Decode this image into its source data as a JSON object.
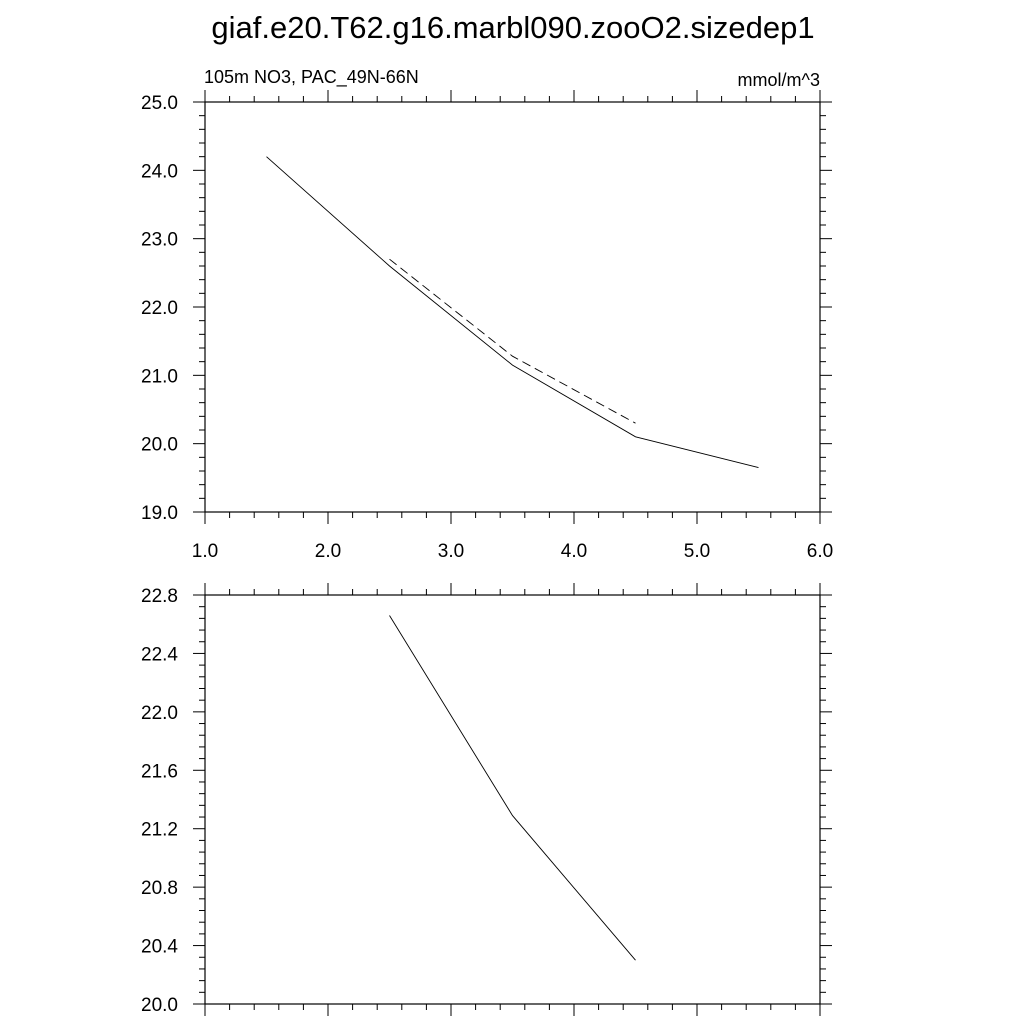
{
  "figure": {
    "title": "giaf.e20.T62.g16.marbl090.zooO2.sizedep1"
  },
  "chart_data": [
    {
      "type": "line",
      "left_label": "105m NO3, PAC_49N-66N",
      "right_label": "mmol/m^3",
      "xlim": [
        1.0,
        6.0
      ],
      "ylim": [
        19.0,
        25.0
      ],
      "x_ticks": [
        1.0,
        2.0,
        3.0,
        4.0,
        5.0,
        6.0
      ],
      "x_tick_labels": [
        "1.0",
        "2.0",
        "3.0",
        "4.0",
        "5.0",
        "6.0"
      ],
      "y_ticks": [
        19.0,
        20.0,
        21.0,
        22.0,
        23.0,
        24.0,
        25.0
      ],
      "y_tick_labels": [
        "19.0",
        "20.0",
        "21.0",
        "22.0",
        "23.0",
        "24.0",
        "25.0"
      ],
      "grid": false,
      "series": [
        {
          "style": "solid",
          "color": "#000000",
          "x": [
            1.5,
            2.5,
            3.5,
            4.5,
            5.5
          ],
          "y": [
            24.2,
            22.6,
            21.15,
            20.1,
            19.65
          ]
        },
        {
          "style": "dashed",
          "color": "#000000",
          "x": [
            2.5,
            3.5,
            4.5
          ],
          "y": [
            22.7,
            21.28,
            20.3
          ]
        }
      ]
    },
    {
      "type": "line",
      "xlim": [
        1.0,
        6.0
      ],
      "ylim": [
        20.0,
        22.8
      ],
      "x_ticks": [
        1.0,
        2.0,
        3.0,
        4.0,
        5.0,
        6.0
      ],
      "y_ticks": [
        20.0,
        20.4,
        20.8,
        21.2,
        21.6,
        22.0,
        22.4,
        22.8
      ],
      "y_tick_labels": [
        "20.0",
        "20.4",
        "20.8",
        "21.2",
        "21.6",
        "22.0",
        "22.4",
        "22.8"
      ],
      "grid": false,
      "series": [
        {
          "style": "solid",
          "color": "#000000",
          "x": [
            2.5,
            3.5,
            4.5
          ],
          "y": [
            22.66,
            21.29,
            20.3
          ]
        }
      ]
    }
  ]
}
